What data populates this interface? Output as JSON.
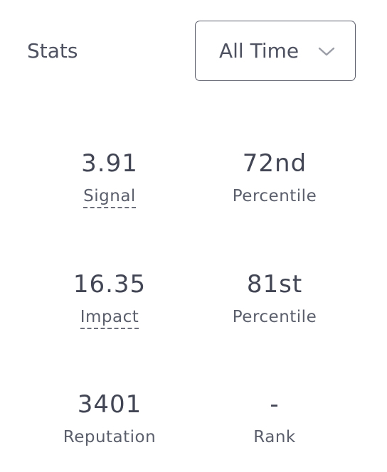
{
  "header": {
    "title": "Stats"
  },
  "range_select": {
    "selected": "All Time"
  },
  "stats": {
    "signal": {
      "value": "3.91",
      "label": "Signal"
    },
    "signal_percentile": {
      "value": "72nd",
      "label": "Percentile"
    },
    "impact": {
      "value": "16.35",
      "label": "Impact"
    },
    "impact_percentile": {
      "value": "81st",
      "label": "Percentile"
    },
    "reputation": {
      "value": "3401",
      "label": "Reputation"
    },
    "rank": {
      "value": "-",
      "label": "Rank"
    }
  },
  "icons": {
    "dropdown": "chevron-down-icon"
  },
  "colors": {
    "text": "#4a4d5c",
    "border": "#5c5f6b"
  }
}
